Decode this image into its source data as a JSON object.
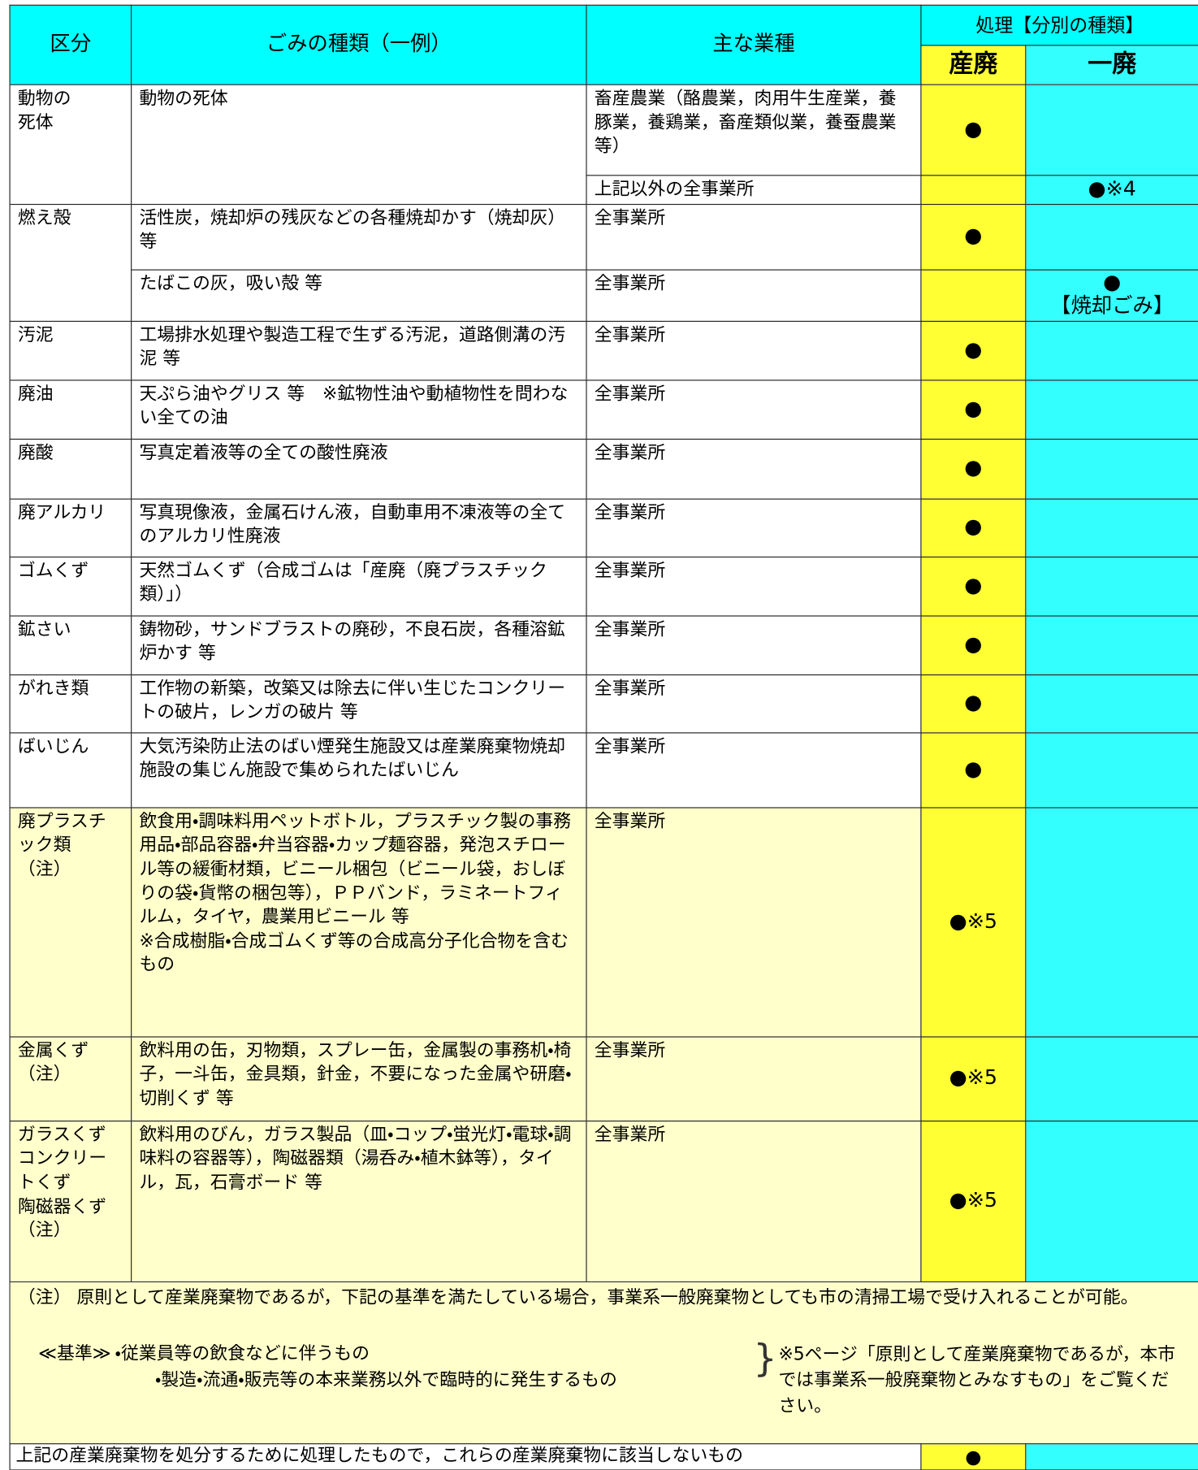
{
  "header": {
    "division": "区分",
    "type": "ごみの種類（一例）",
    "industry": "主な業種",
    "processing": "処理【分別の種類】",
    "sanpai": "産廃",
    "ippai": "一廃"
  },
  "rows": [
    {
      "category": "動物の\n死体",
      "entries": [
        {
          "type": "動物の死体",
          "industry": "畜産農業（酪農業，肉用牛生産業，養豚業，養鶏業，畜産類似業，養蚕農業等）",
          "sanpai": "●"
        },
        {
          "industry": "上記以外の全事業所",
          "ippai": "●※4"
        }
      ]
    },
    {
      "category": "燃え殻",
      "entries": [
        {
          "type": "活性炭，焼却炉の残灰などの各種焼却かす（焼却灰）等",
          "industry": "全事業所",
          "sanpai": "●"
        },
        {
          "type": "たばこの灰，吸い殻 等",
          "industry": "全事業所",
          "ippai": "●\n【焼却ごみ】"
        }
      ]
    },
    {
      "category": "汚泥",
      "entries": [
        {
          "type": "工場排水処理や製造工程で生ずる汚泥，道路側溝の汚泥 等",
          "industry": "全事業所",
          "sanpai": "●"
        }
      ]
    },
    {
      "category": "廃油",
      "entries": [
        {
          "type": "天ぷら油やグリス 等　※鉱物性油や動植物性を問わない全ての油",
          "industry": "全事業所",
          "sanpai": "●"
        }
      ]
    },
    {
      "category": "廃酸",
      "entries": [
        {
          "type": "写真定着液等の全ての酸性廃液",
          "industry": "全事業所",
          "sanpai": "●"
        }
      ]
    },
    {
      "category": "廃アルカリ",
      "entries": [
        {
          "type": "写真現像液，金属石けん液，自動車用不凍液等の全てのアルカリ性廃液",
          "industry": "全事業所",
          "sanpai": "●"
        }
      ]
    },
    {
      "category": "ゴムくず",
      "entries": [
        {
          "type": "天然ゴムくず（合成ゴムは「産廃（廃プラスチック類）」）",
          "industry": "全事業所",
          "sanpai": "●"
        }
      ]
    },
    {
      "category": "鉱さい",
      "entries": [
        {
          "type": "鋳物砂，サンドブラストの廃砂，不良石炭，各種溶鉱炉かす 等",
          "industry": "全事業所",
          "sanpai": "●"
        }
      ]
    },
    {
      "category": "がれき類",
      "entries": [
        {
          "type": "工作物の新築，改築又は除去に伴い生じたコンクリートの破片，レンガの破片 等",
          "industry": "全事業所",
          "sanpai": "●"
        }
      ]
    },
    {
      "category": "ばいじん",
      "entries": [
        {
          "type": "大気汚染防止法のばい煙発生施設又は産業廃棄物焼却施設の集じん施設で集められたばいじん",
          "industry": "全事業所",
          "sanpai": "●"
        }
      ]
    },
    {
      "category": "廃プラスチック類\n（注）",
      "background": "#ffffcc",
      "entries": [
        {
          "type": "飲食用・調味料用ペットボトル，プラスチック製の事務用品・部品容器・弁当容器・カップ麺容器，発泡スチロール等の緩衝材類，ビニール梱包（ビニール袋，おしぼりの袋・貨幣の梱包等），ＰＰバンド，ラミネートフィルム，タイヤ，農業用ビニール 等\n※合成樹脂・合成ゴムくず等の合成高分子化合物を含むもの",
          "industry": "全事業所",
          "sanpai": "●※5"
        }
      ]
    },
    {
      "category": "金属くず\n（注）",
      "background": "#ffffcc",
      "entries": [
        {
          "type": "飲料用の缶，刃物類，スプレー缶，金属製の事務机・椅子，一斗缶，金具類，針金，不要になった金属や研磨・切削くず 等",
          "industry": "全事業所",
          "sanpai": "●※5"
        }
      ]
    },
    {
      "category": "ガラスくず\nコンクリートくず\n陶磁器くず\n（注）",
      "background": "#ffffcc",
      "entries": [
        {
          "type": "飲料用のびん，ガラス製品（皿・コップ・蛍光灯・電球・調味料の容器等），陶磁器類（湯呑み・植木鉢等），タイル，瓦，石膏ボード 等",
          "industry": "全事業所",
          "sanpai": "●※5"
        }
      ]
    }
  ],
  "note": {
    "text": "（注） 原則として産業廃棄物であるが，下記の基準を満たしている場合，事業系一般廃棄物としても市の清掃工場で受け入れることが可能。",
    "criteria_label": "≪基準≫",
    "criteria": [
      "・従業員等の飲食などに伴うもの",
      "・製造・流通・販売等の本来業務以外で臨時的に発生するもの"
    ],
    "reference": "※5ページ「原則として産業廃棄物であるが，本市では事業系一般廃棄物とみなすもの」をご覧ください。"
  },
  "footer": {
    "text": "上記の産業廃棄物を処分するために処理したもので，これらの産業廃棄物に該当しないもの",
    "sanpai": "●"
  }
}
